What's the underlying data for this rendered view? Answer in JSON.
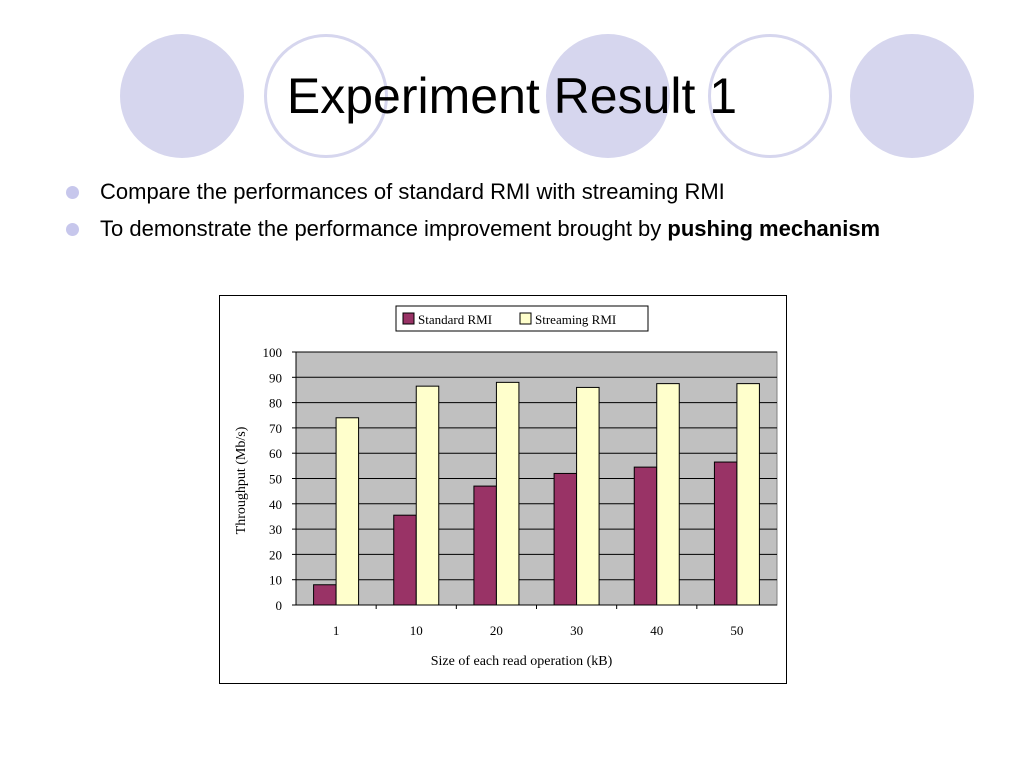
{
  "slide": {
    "title": "Experiment Result 1",
    "bullets": [
      {
        "text": "Compare the performances of standard RMI with streaming RMI",
        "bold": ""
      },
      {
        "text": "To demonstrate the performance improvement brought by ",
        "bold": "pushing mechanism"
      }
    ]
  },
  "colors": {
    "decor": "#d6d6ee",
    "plot_bg": "#c0c0c0",
    "standard": "#993366",
    "streaming": "#ffffcc"
  },
  "chart_data": {
    "type": "bar",
    "title": "",
    "xlabel": "Size of each read operation (kB)",
    "ylabel": "Throughput (Mb/s)",
    "categories": [
      "1",
      "10",
      "20",
      "30",
      "40",
      "50"
    ],
    "ylim": [
      0,
      100
    ],
    "yticks": [
      0,
      10,
      20,
      30,
      40,
      50,
      60,
      70,
      80,
      90,
      100
    ],
    "grid": true,
    "legend_position": "top",
    "series": [
      {
        "name": "Standard RMI",
        "color": "#993366",
        "values": [
          8,
          35.5,
          47,
          52,
          54.5,
          56.5
        ]
      },
      {
        "name": "Streaming RMI",
        "color": "#ffffcc",
        "values": [
          74,
          86.5,
          88,
          86,
          87.5,
          87.5
        ]
      }
    ]
  }
}
